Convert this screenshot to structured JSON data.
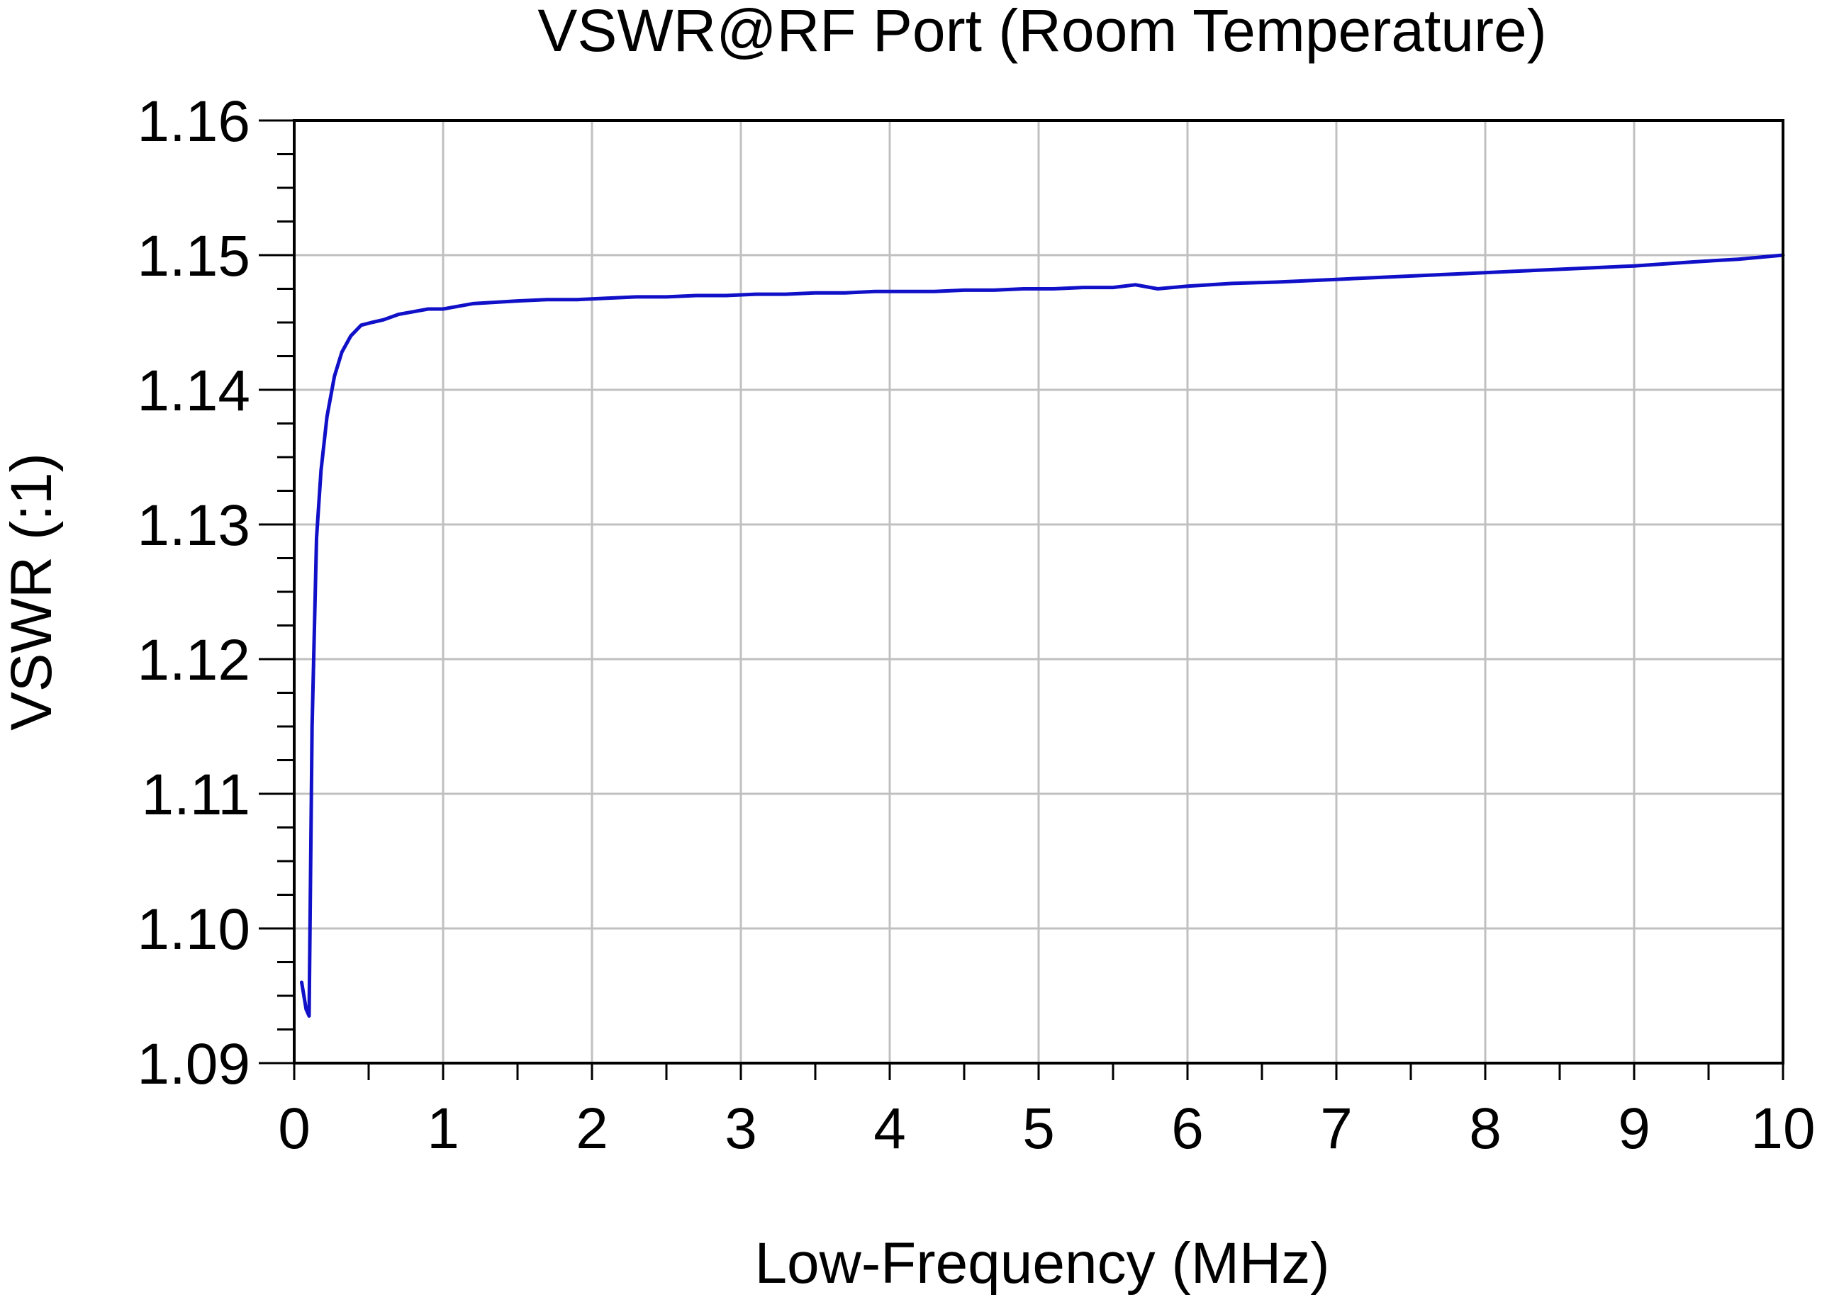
{
  "chart_data": {
    "type": "line",
    "title": "VSWR@RF Port (Room Temperature)",
    "xlabel": "Low-Frequency (MHz)",
    "ylabel": "VSWR (:1)",
    "xlim": [
      0,
      10
    ],
    "ylim": [
      1.09,
      1.16
    ],
    "x_ticks": [
      0,
      1,
      2,
      3,
      4,
      5,
      6,
      7,
      8,
      9,
      10
    ],
    "x_tick_labels": [
      "0",
      "1",
      "2",
      "3",
      "4",
      "5",
      "6",
      "7",
      "8",
      "9",
      "10"
    ],
    "y_ticks": [
      1.09,
      1.1,
      1.11,
      1.12,
      1.13,
      1.14,
      1.15,
      1.16
    ],
    "y_tick_labels": [
      "1.09",
      "1.10",
      "1.11",
      "1.12",
      "1.13",
      "1.14",
      "1.15",
      "1.16"
    ],
    "grid": true,
    "series_color": "#1010c8",
    "series": [
      {
        "x": [
          0.05,
          0.08,
          0.1,
          0.12,
          0.15,
          0.18,
          0.22,
          0.27,
          0.32,
          0.38,
          0.45,
          0.52,
          0.6,
          0.7,
          0.8,
          0.9,
          1.0,
          1.1,
          1.2,
          1.35,
          1.5,
          1.7,
          1.9,
          2.1,
          2.3,
          2.5,
          2.7,
          2.9,
          3.1,
          3.3,
          3.5,
          3.7,
          3.9,
          4.1,
          4.3,
          4.5,
          4.7,
          4.9,
          5.1,
          5.3,
          5.5,
          5.65,
          5.8,
          6.0,
          6.3,
          6.6,
          7.0,
          7.4,
          7.8,
          8.2,
          8.6,
          9.0,
          9.4,
          9.7,
          10.0
        ],
        "y": [
          1.096,
          1.094,
          1.0935,
          1.115,
          1.129,
          1.134,
          1.138,
          1.141,
          1.1428,
          1.144,
          1.1448,
          1.145,
          1.1452,
          1.1456,
          1.1458,
          1.146,
          1.146,
          1.1462,
          1.1464,
          1.1465,
          1.1466,
          1.1467,
          1.1467,
          1.1468,
          1.1469,
          1.1469,
          1.147,
          1.147,
          1.1471,
          1.1471,
          1.1472,
          1.1472,
          1.1473,
          1.1473,
          1.1473,
          1.1474,
          1.1474,
          1.1475,
          1.1475,
          1.1476,
          1.1476,
          1.1478,
          1.1475,
          1.1477,
          1.1479,
          1.148,
          1.1482,
          1.1484,
          1.1486,
          1.1488,
          1.149,
          1.1492,
          1.1495,
          1.1497,
          1.15
        ]
      }
    ]
  }
}
